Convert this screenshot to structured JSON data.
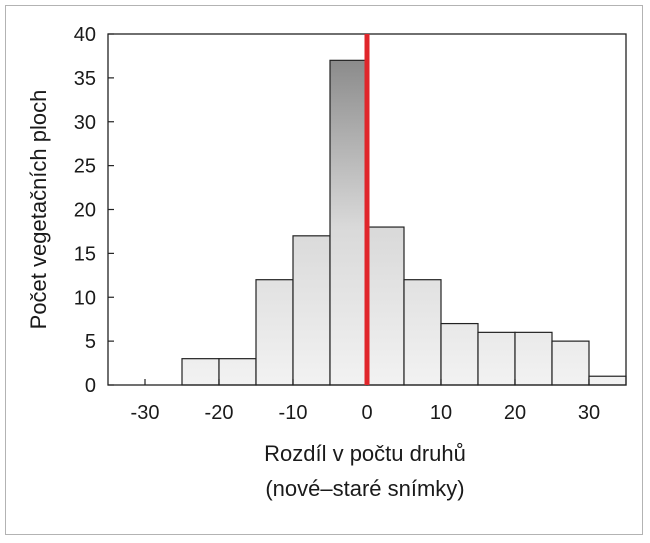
{
  "chart_data": {
    "type": "bar",
    "subtype": "histogram",
    "bin_width": 5,
    "bins": [
      {
        "x0": -25,
        "x1": -20,
        "value": 3
      },
      {
        "x0": -20,
        "x1": -15,
        "value": 3
      },
      {
        "x0": -15,
        "x1": -10,
        "value": 12
      },
      {
        "x0": -10,
        "x1": -5,
        "value": 17
      },
      {
        "x0": -5,
        "x1": 0,
        "value": 37
      },
      {
        "x0": 0,
        "x1": 5,
        "value": 18
      },
      {
        "x0": 5,
        "x1": 10,
        "value": 12
      },
      {
        "x0": 10,
        "x1": 15,
        "value": 7
      },
      {
        "x0": 15,
        "x1": 20,
        "value": 6
      },
      {
        "x0": 20,
        "x1": 25,
        "value": 6
      },
      {
        "x0": 25,
        "x1": 30,
        "value": 5
      },
      {
        "x0": 30,
        "x1": 35,
        "value": 1
      }
    ],
    "xlim": [
      -35,
      35
    ],
    "ylim": [
      0,
      40
    ],
    "xticks": [
      -30,
      -20,
      -10,
      0,
      10,
      20,
      30
    ],
    "xtick_labels": [
      "-30",
      "-20",
      "-10",
      "0",
      "10",
      "20",
      "30"
    ],
    "yticks": [
      0,
      5,
      10,
      15,
      20,
      25,
      30,
      35,
      40
    ],
    "ytick_labels": [
      "0",
      "5",
      "10",
      "15",
      "20",
      "25",
      "30",
      "35",
      "40"
    ],
    "reference_line": {
      "x": 0,
      "color": "#e0262b"
    },
    "xlabel_line1": "Rozdíl v počtu druhů",
    "xlabel_line2": "(nové–staré snímky)",
    "ylabel": "Počet vegetačních ploch",
    "grid": false,
    "bar_fill_light": "#f2f2f2",
    "bar_fill_dark": "#7f7f7f"
  }
}
